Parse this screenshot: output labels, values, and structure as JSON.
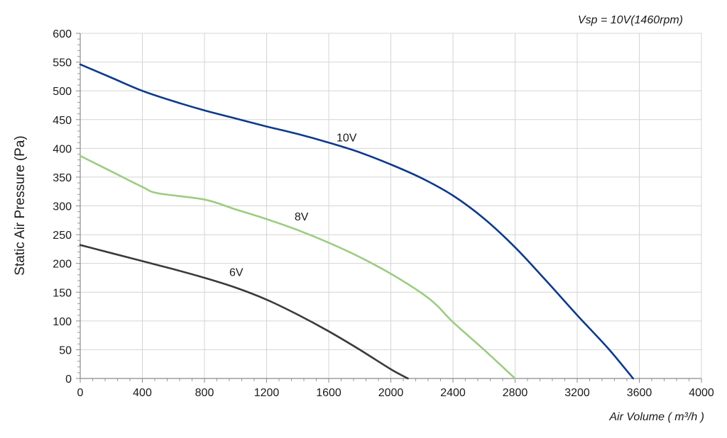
{
  "chart_data": {
    "type": "line",
    "annotation": "Vsp = 10V(1460rpm)",
    "xlabel": "Air Volume ( m³/h )",
    "ylabel": "Static Air Pressure  (Pa)",
    "xlim": [
      0,
      4000
    ],
    "ylim": [
      0,
      600
    ],
    "x_ticks": [
      0,
      400,
      800,
      1200,
      1600,
      2000,
      2400,
      2800,
      3200,
      3600,
      4000
    ],
    "y_ticks": [
      0,
      50,
      100,
      150,
      200,
      250,
      300,
      350,
      400,
      450,
      500,
      550,
      600
    ],
    "grid": true,
    "series": [
      {
        "name": "10V",
        "color": "#0d3a8a",
        "label_at": [
          1650,
          412
        ],
        "points": [
          [
            0,
            546
          ],
          [
            200,
            523
          ],
          [
            400,
            500
          ],
          [
            600,
            482
          ],
          [
            800,
            466
          ],
          [
            1000,
            452
          ],
          [
            1200,
            438
          ],
          [
            1400,
            425
          ],
          [
            1600,
            410
          ],
          [
            1800,
            393
          ],
          [
            2000,
            372
          ],
          [
            2200,
            348
          ],
          [
            2400,
            318
          ],
          [
            2600,
            278
          ],
          [
            2800,
            228
          ],
          [
            3000,
            170
          ],
          [
            3200,
            110
          ],
          [
            3400,
            52
          ],
          [
            3560,
            0
          ]
        ]
      },
      {
        "name": "8V",
        "color": "#9ccc82",
        "label_at": [
          1380,
          275
        ],
        "points": [
          [
            0,
            387
          ],
          [
            200,
            360
          ],
          [
            400,
            333
          ],
          [
            500,
            322
          ],
          [
            800,
            311
          ],
          [
            1000,
            294
          ],
          [
            1200,
            277
          ],
          [
            1400,
            258
          ],
          [
            1600,
            236
          ],
          [
            1800,
            211
          ],
          [
            2000,
            182
          ],
          [
            2200,
            148
          ],
          [
            2300,
            126
          ],
          [
            2400,
            98
          ],
          [
            2600,
            50
          ],
          [
            2800,
            0
          ]
        ]
      },
      {
        "name": "6V",
        "color": "#3a3a3a",
        "label_at": [
          960,
          178
        ],
        "points": [
          [
            0,
            232
          ],
          [
            200,
            218
          ],
          [
            400,
            204
          ],
          [
            600,
            190
          ],
          [
            800,
            175
          ],
          [
            1000,
            158
          ],
          [
            1200,
            137
          ],
          [
            1400,
            111
          ],
          [
            1600,
            82
          ],
          [
            1800,
            50
          ],
          [
            2000,
            16
          ],
          [
            2110,
            0
          ]
        ]
      }
    ]
  }
}
